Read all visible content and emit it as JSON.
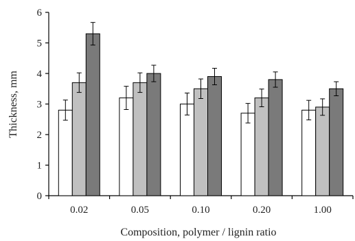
{
  "chart_data": {
    "type": "bar",
    "title": "",
    "xlabel": "Composition, polymer / lignin ratio",
    "ylabel": "Thickness, mm",
    "categories": [
      "0.02",
      "0.05",
      "0.10",
      "0.20",
      "1.00"
    ],
    "ylim": [
      0,
      6
    ],
    "yticks": [
      "0",
      "1",
      "2",
      "3",
      "4",
      "5",
      "6"
    ],
    "grid": false,
    "series": [
      {
        "values": [
          2.8,
          3.2,
          3.0,
          2.7,
          2.8
        ],
        "errors": [
          0.33,
          0.38,
          0.36,
          0.32,
          0.32
        ],
        "color": "#ffffff"
      },
      {
        "values": [
          3.7,
          3.7,
          3.5,
          3.2,
          2.9
        ],
        "errors": [
          0.32,
          0.32,
          0.32,
          0.29,
          0.27
        ],
        "color": "#c0c0c0"
      },
      {
        "values": [
          5.3,
          4.0,
          3.9,
          3.8,
          3.5
        ],
        "errors": [
          0.37,
          0.27,
          0.27,
          0.25,
          0.23
        ],
        "color": "#7a7a7a"
      }
    ]
  }
}
